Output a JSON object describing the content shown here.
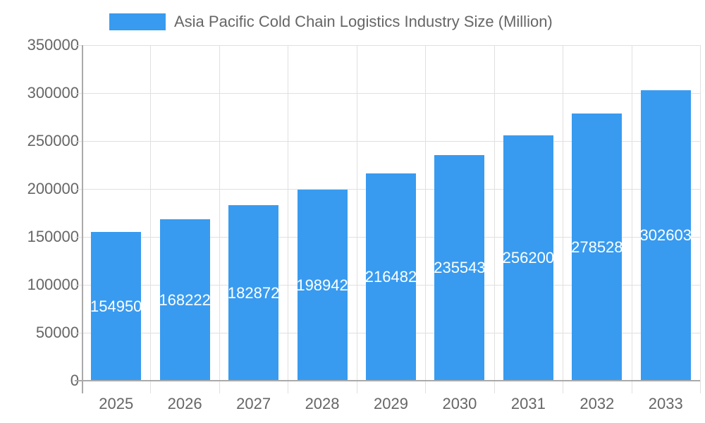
{
  "chart_data": {
    "type": "bar",
    "title": "",
    "legend": [
      {
        "label": "Asia Pacific Cold Chain Logistics Industry Size (Million)",
        "color": "#389bf0"
      }
    ],
    "legend_position": "top",
    "categories": [
      "2025",
      "2026",
      "2027",
      "2028",
      "2029",
      "2030",
      "2031",
      "2032",
      "2033"
    ],
    "series": [
      {
        "name": "Asia Pacific Cold Chain Logistics Industry Size (Million)",
        "values": [
          154950,
          168222,
          182872,
          198942,
          216482,
          235543,
          256200,
          278528,
          302603
        ],
        "color": "#389bf0"
      }
    ],
    "xlabel": "",
    "ylabel": "",
    "ylim": [
      0,
      350000
    ],
    "y_ticks": [
      "0",
      "50000",
      "100000",
      "150000",
      "200000",
      "250000",
      "300000",
      "350000"
    ],
    "grid": true,
    "data_labels": true
  }
}
